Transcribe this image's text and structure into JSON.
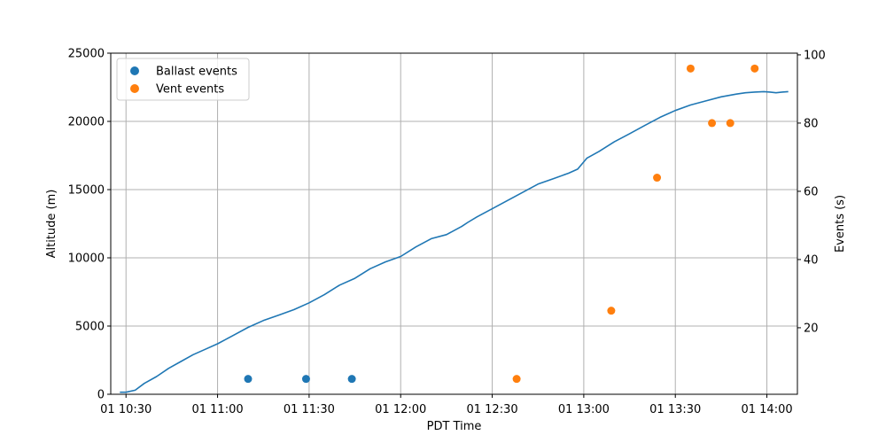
{
  "chart_data": {
    "type": "line",
    "title": "",
    "xlabel": "PDT Time",
    "ylabel": "Altitude (m)",
    "y2label": "Events (s)",
    "grid": true,
    "legend_position": "upper-left",
    "x_ticks": [
      "01 10:30",
      "01 11:00",
      "01 11:30",
      "01 12:00",
      "01 12:30",
      "01 13:00",
      "01 13:30",
      "01 14:00"
    ],
    "xlim": [
      "10:25",
      "14:10"
    ],
    "ylim": [
      0,
      25000
    ],
    "y_ticks": [
      0,
      5000,
      10000,
      15000,
      20000,
      25000
    ],
    "y2lim": [
      0.5,
      100.5
    ],
    "y2_ticks": [
      20,
      40,
      60,
      80,
      100
    ],
    "series": [
      {
        "kind": "line",
        "axis": "left",
        "color": "#1f77b4",
        "x": [
          "10:28",
          "10:30",
          "10:33",
          "10:36",
          "10:40",
          "10:44",
          "10:48",
          "10:52",
          "10:56",
          "11:00",
          "11:05",
          "11:10",
          "11:15",
          "11:20",
          "11:25",
          "11:30",
          "11:35",
          "11:40",
          "11:45",
          "11:50",
          "11:55",
          "12:00",
          "12:05",
          "12:10",
          "12:15",
          "12:20",
          "12:22",
          "12:25",
          "12:30",
          "12:35",
          "12:40",
          "12:45",
          "12:50",
          "12:55",
          "12:58",
          "13:01",
          "13:05",
          "13:10",
          "13:15",
          "13:20",
          "13:25",
          "13:30",
          "13:35",
          "13:40",
          "13:45",
          "13:50",
          "13:53",
          "13:56",
          "13:59",
          "14:01",
          "14:03",
          "14:05",
          "14:07"
        ],
        "y": [
          150,
          150,
          300,
          800,
          1300,
          1900,
          2400,
          2900,
          3300,
          3700,
          4300,
          4900,
          5400,
          5800,
          6200,
          6700,
          7300,
          8000,
          8500,
          9200,
          9700,
          10100,
          10800,
          11400,
          11700,
          12300,
          12600,
          13000,
          13600,
          14200,
          14800,
          15400,
          15800,
          16200,
          16500,
          17300,
          17800,
          18500,
          19100,
          19700,
          20300,
          20800,
          21200,
          21500,
          21800,
          22000,
          22100,
          22150,
          22180,
          22150,
          22100,
          22150,
          22180
        ]
      },
      {
        "name": "Ballast events",
        "kind": "scatter",
        "axis": "right",
        "color": "#1f77b4",
        "x": [
          "11:10",
          "11:29",
          "11:44"
        ],
        "y": [
          5,
          5,
          5
        ]
      },
      {
        "name": "Vent events",
        "kind": "scatter",
        "axis": "right",
        "color": "#ff7f0e",
        "x": [
          "12:38",
          "13:09",
          "13:24",
          "13:35",
          "13:42",
          "13:48",
          "13:56"
        ],
        "y": [
          5,
          25,
          64,
          96,
          80,
          80,
          96
        ]
      }
    ]
  }
}
